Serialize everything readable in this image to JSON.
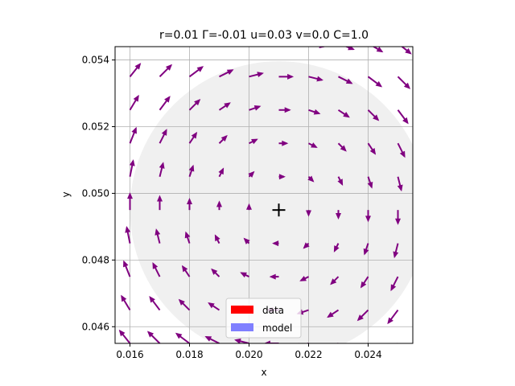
{
  "chart_data": {
    "type": "quiver",
    "title": "r=0.01 Γ=-0.01 u=0.03 v=0.0 C=1.0",
    "xlabel": "x",
    "ylabel": "y",
    "xlim": [
      0.0155,
      0.0255
    ],
    "ylim": [
      0.0455,
      0.0544
    ],
    "xticks": [
      "0.016",
      "0.018",
      "0.020",
      "0.022",
      "0.024"
    ],
    "yticks": [
      "0.046",
      "0.048",
      "0.050",
      "0.052",
      "0.054"
    ],
    "grid": true,
    "vortex_center": [
      0.021,
      0.0495
    ],
    "vortex_radius": 0.005,
    "grid_x": [
      0.016,
      0.017,
      0.018,
      0.019,
      0.02,
      0.021,
      0.022,
      0.023,
      0.024,
      0.025
    ],
    "grid_y": [
      0.0455,
      0.0465,
      0.0475,
      0.0485,
      0.0495,
      0.0505,
      0.0515,
      0.0525,
      0.0535,
      0.0545
    ],
    "legend": {
      "placement": "lower center",
      "entries": [
        {
          "label": "data",
          "color": "#ff0000"
        },
        {
          "label": "model",
          "color": "#7f7fff"
        }
      ]
    },
    "colors": {
      "arrow": "#800080",
      "disk": "#f0f0f0",
      "grid": "#b0b0b0"
    }
  }
}
